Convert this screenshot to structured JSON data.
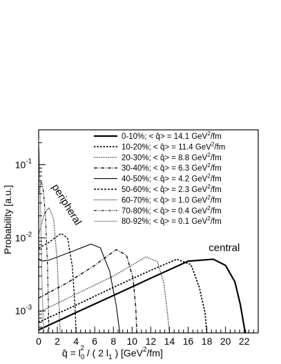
{
  "chart_data": {
    "type": "line",
    "title": "",
    "ylabel": "Probability [a.u.]",
    "xlabel_parts": {
      "qhat": "q̂",
      "eq": " = l",
      "sub0": "0",
      "sup2": "2",
      "mid": " / ( 2 l",
      "sub1": "1",
      "close": " )   [GeV",
      "unit_sup": "2",
      "unit_end": "/fm]"
    },
    "xlim": [
      0,
      23.5
    ],
    "ylim": [
      0.0005,
      0.3
    ],
    "yscale": "log",
    "x_ticks": [
      0,
      2,
      4,
      6,
      8,
      10,
      12,
      14,
      16,
      18,
      20,
      22
    ],
    "x_tick_labels": [
      "0",
      "2",
      "4",
      "6",
      "8",
      "10",
      "12",
      "14",
      "16",
      "18",
      "20",
      "22"
    ],
    "y_tick_labels": [
      {
        "value": 0.001,
        "base": "10",
        "exp": "-3"
      },
      {
        "value": 0.01,
        "base": "10",
        "exp": "-2"
      },
      {
        "value": 0.1,
        "base": "10",
        "exp": "-1"
      }
    ],
    "legend_placement": "top-right",
    "legend_symbol": "< q̂> =",
    "legend_unit_base": "GeV",
    "legend_unit_sup": "2",
    "legend_unit_end": "/fm",
    "annotations": [
      {
        "text": "peripheral",
        "x": 1.4,
        "y": 0.05
      },
      {
        "text": "central",
        "x": 18.2,
        "y": 0.0066
      }
    ],
    "series": [
      {
        "name": "0-10%;",
        "mean_label": "14.1",
        "dash": "",
        "width": 2.2,
        "x": [
          0,
          4,
          8,
          12,
          16,
          18.7,
          20,
          21,
          21.6,
          22.0,
          22.15
        ],
        "y": [
          0.00055,
          0.00095,
          0.00163,
          0.0028,
          0.0048,
          0.0051,
          0.0042,
          0.0025,
          0.0012,
          0.0006,
          0.0005
        ]
      },
      {
        "name": "10-20%;",
        "mean_label": "11.4",
        "dash": "2.5,2",
        "width": 1.8,
        "x": [
          0,
          4,
          8,
          12,
          14.8,
          16.3,
          17.2,
          17.8,
          18.0
        ],
        "y": [
          0.0007,
          0.0012,
          0.0021,
          0.0036,
          0.0051,
          0.0043,
          0.0021,
          0.00095,
          0.0005
        ]
      },
      {
        "name": "20-30%;",
        "mean_label": "8.8",
        "dash": "1,1.6",
        "width": 1.4,
        "x": [
          0,
          4,
          8,
          11.5,
          12.7,
          13.4,
          13.8,
          14.0
        ],
        "y": [
          0.00095,
          0.0017,
          0.003,
          0.0055,
          0.0047,
          0.0024,
          0.0009,
          0.0005
        ]
      },
      {
        "name": "30-40%;",
        "mean_label": "6.3",
        "dash": "5,2,1,2",
        "width": 1.4,
        "x": [
          0,
          3,
          6,
          8.3,
          9.4,
          10.1,
          10.4,
          10.5
        ],
        "y": [
          0.0015,
          0.0024,
          0.0042,
          0.0069,
          0.0058,
          0.0028,
          0.0011,
          0.0005
        ]
      },
      {
        "name": "40-50%;",
        "mean_label": "4.2",
        "dash": "",
        "width": 1.1,
        "x": [
          0,
          0.3,
          1,
          3,
          5.6,
          6.6,
          7.6,
          8.3,
          8.6,
          8.7
        ],
        "y": [
          0.0052,
          0.0048,
          0.0049,
          0.0061,
          0.0082,
          0.0073,
          0.0035,
          0.0012,
          0.0006,
          0.0005
        ]
      },
      {
        "name": "50-60%;",
        "mean_label": "2.3",
        "dash": "3,2",
        "width": 1.4,
        "x": [
          0,
          1,
          2.4,
          3.1,
          3.6,
          3.9,
          4.0
        ],
        "y": [
          0.0072,
          0.0085,
          0.0115,
          0.0099,
          0.0041,
          0.0011,
          0.0005
        ]
      },
      {
        "name": "60-70%;",
        "mean_label": "1.0",
        "dash": "1,1.4",
        "width": 1.3,
        "x": [
          0,
          0.6,
          1.1,
          1.6,
          2.0,
          2.2,
          2.3
        ],
        "y": [
          0.011,
          0.021,
          0.026,
          0.018,
          0.0045,
          0.001,
          0.0005
        ]
      },
      {
        "name": "70-80%;",
        "mean_label": "0.4",
        "dash": "4,1.5,1,1.5,1,1.5",
        "width": 1.2,
        "x": [
          0,
          0.25,
          0.5,
          0.75,
          0.95,
          1.05,
          1.1
        ],
        "y": [
          0.04,
          0.06,
          0.045,
          0.018,
          0.004,
          0.001,
          0.0005
        ]
      },
      {
        "name": "80-92%;",
        "mean_label": "0.1",
        "dash": "",
        "width": 1.0,
        "color": "#8a8a8a",
        "x": [
          0.02,
          0.08,
          0.15,
          0.25,
          0.38,
          0.48,
          0.55
        ],
        "y": [
          0.22,
          0.13,
          0.05,
          0.012,
          0.002,
          0.0008,
          0.0005
        ]
      }
    ]
  }
}
